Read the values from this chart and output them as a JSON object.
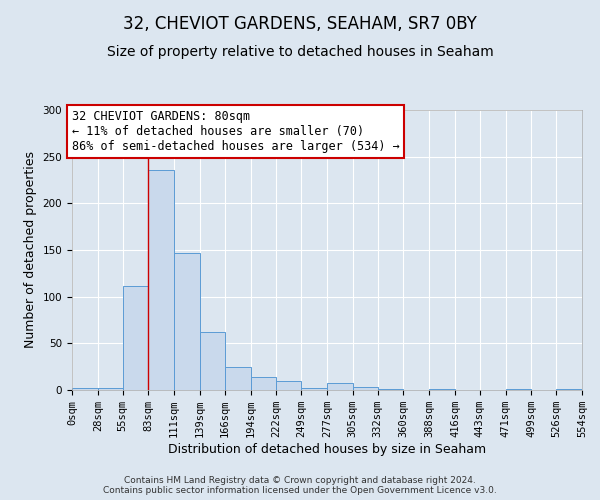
{
  "title": "32, CHEVIOT GARDENS, SEAHAM, SR7 0BY",
  "subtitle": "Size of property relative to detached houses in Seaham",
  "xlabel": "Distribution of detached houses by size in Seaham",
  "ylabel": "Number of detached properties",
  "bin_edges": [
    0,
    28,
    55,
    83,
    111,
    139,
    166,
    194,
    222,
    249,
    277,
    305,
    332,
    360,
    388,
    416,
    443,
    471,
    499,
    526,
    554
  ],
  "bin_labels": [
    "0sqm",
    "28sqm",
    "55sqm",
    "83sqm",
    "111sqm",
    "139sqm",
    "166sqm",
    "194sqm",
    "222sqm",
    "249sqm",
    "277sqm",
    "305sqm",
    "332sqm",
    "360sqm",
    "388sqm",
    "416sqm",
    "443sqm",
    "471sqm",
    "499sqm",
    "526sqm",
    "554sqm"
  ],
  "counts": [
    2,
    2,
    111,
    236,
    147,
    62,
    25,
    14,
    10,
    2,
    8,
    3,
    1,
    0,
    1,
    0,
    0,
    1,
    0,
    1
  ],
  "bar_color": "#c9d9ec",
  "bar_edge_color": "#5b9bd5",
  "vline_x": 83,
  "vline_color": "#cc0000",
  "annotation_line1": "32 CHEVIOT GARDENS: 80sqm",
  "annotation_line2": "← 11% of detached houses are smaller (70)",
  "annotation_line3": "86% of semi-detached houses are larger (534) →",
  "annotation_box_edge_color": "#cc0000",
  "ylim": [
    0,
    300
  ],
  "yticks": [
    0,
    50,
    100,
    150,
    200,
    250,
    300
  ],
  "footer_line1": "Contains HM Land Registry data © Crown copyright and database right 2024.",
  "footer_line2": "Contains public sector information licensed under the Open Government Licence v3.0.",
  "background_color": "#dce6f0",
  "plot_bg_color": "#dce6f0",
  "grid_color": "#ffffff",
  "title_fontsize": 12,
  "subtitle_fontsize": 10,
  "axis_label_fontsize": 9,
  "tick_fontsize": 7.5,
  "annotation_fontsize": 8.5,
  "footer_fontsize": 6.5
}
